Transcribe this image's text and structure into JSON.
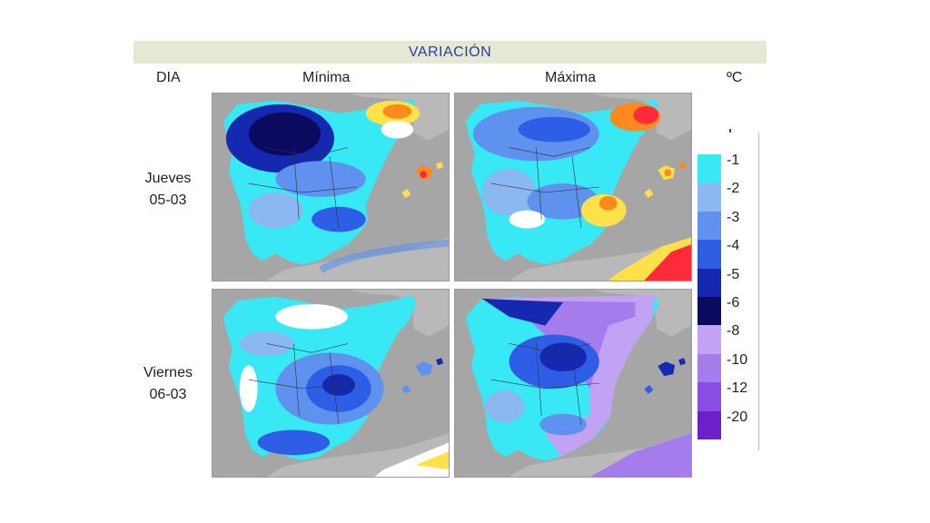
{
  "header": {
    "title": "VARIACIÓN",
    "col_day": "DIA",
    "col_min": "Mínima",
    "col_max": "Máxima",
    "unit": "ºC"
  },
  "rows": [
    {
      "day": "Jueves",
      "date": "05-03"
    },
    {
      "day": "Viernes",
      "date": "06-03"
    }
  ],
  "legend": {
    "labels": [
      "-1",
      "-2",
      "-3",
      "-4",
      "-5",
      "-6",
      "-8",
      "-10",
      "-12",
      "-20"
    ],
    "colors": [
      "#38e8f4",
      "#8cb8f2",
      "#5f91ee",
      "#2f5ee6",
      "#1428b0",
      "#0c0a5e",
      "#c2a2f2",
      "#a47cec",
      "#8a4ee4",
      "#6a22c8"
    ]
  },
  "colors": {
    "sea": "#a6a6a6",
    "title_text": "#2f3c9a",
    "title_bg": "#e5e8d2",
    "warm_yellow": "#ffe24a",
    "warm_orange": "#ff8a1c",
    "warm_red": "#ff2a3a"
  }
}
